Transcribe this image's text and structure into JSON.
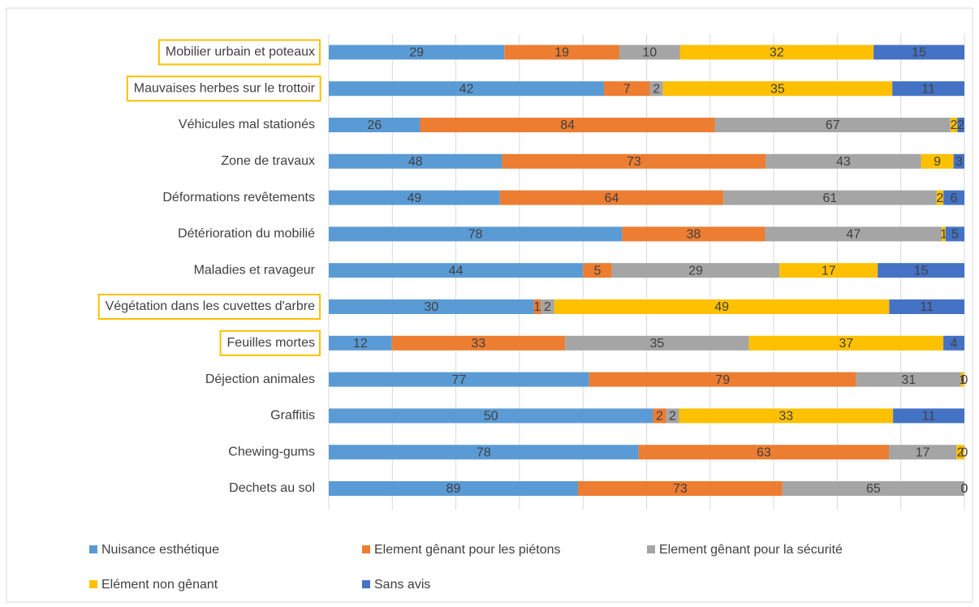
{
  "chart_data": {
    "type": "stacked_bar_100",
    "categories": [
      "Mobilier urbain et poteaux",
      "Mauvaises herbes sur le trottoir",
      "Véhicules mal stationés",
      "Zone de travaux",
      "Déformations revêtements",
      "Détérioration du mobilié",
      "Maladies et ravageur",
      "Végétation dans les cuvettes d'arbre",
      "Feuilles mortes",
      "Déjection animales",
      "Graffitis",
      "Chewing-gums",
      "Dechets au sol"
    ],
    "series": [
      {
        "name": "Nuisance esthétique",
        "color": "#5b9bd5",
        "values": [
          29,
          42,
          26,
          48,
          49,
          78,
          44,
          30,
          12,
          77,
          50,
          78,
          89
        ]
      },
      {
        "name": "Element gênant pour les piétons",
        "color": "#ed7d31",
        "values": [
          19,
          7,
          84,
          73,
          64,
          38,
          5,
          1,
          33,
          79,
          2,
          63,
          73
        ]
      },
      {
        "name": "Element gênant pour la sécurité",
        "color": "#a5a5a5",
        "values": [
          10,
          2,
          67,
          43,
          61,
          47,
          29,
          2,
          35,
          31,
          2,
          17,
          65
        ]
      },
      {
        "name": "Elément non gênant",
        "color": "#ffc000",
        "values": [
          32,
          35,
          2,
          9,
          2,
          1,
          17,
          49,
          37,
          1,
          33,
          2,
          0
        ]
      },
      {
        "name": "Sans avis",
        "color": "#4472c4",
        "values": [
          15,
          11,
          2,
          3,
          6,
          5,
          15,
          11,
          4,
          0,
          11,
          0,
          0
        ]
      }
    ],
    "highlight": [
      0,
      1,
      7,
      8
    ],
    "grid": true
  }
}
